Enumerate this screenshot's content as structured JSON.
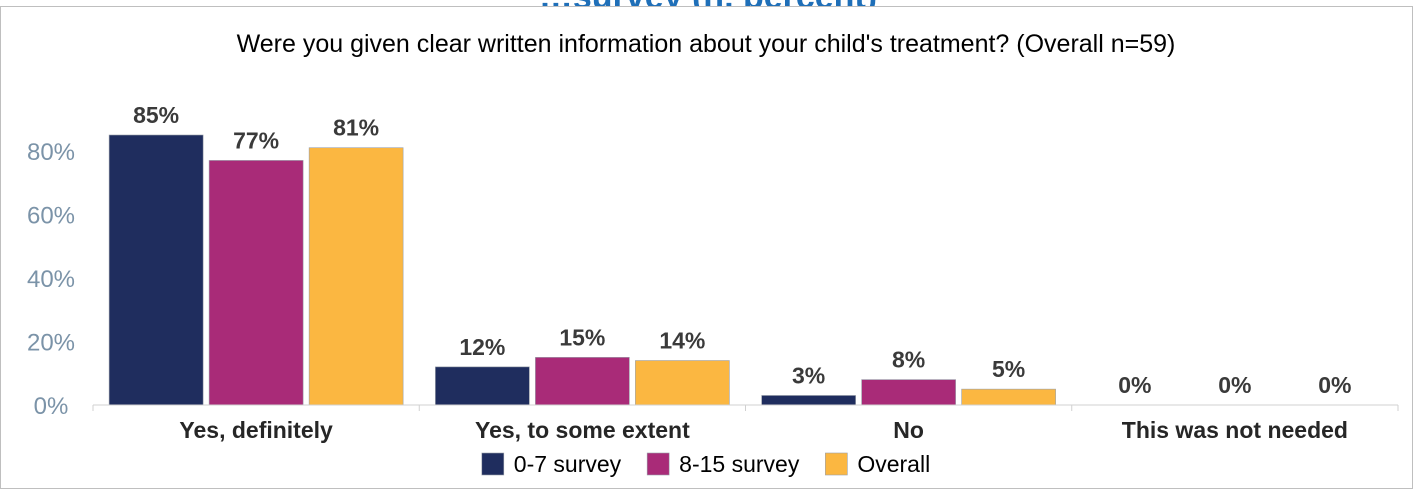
{
  "header_fragment": "…survey (n, percent)",
  "chart_data": {
    "type": "bar",
    "title": "Were you given clear written information about your child's treatment? (Overall n=59)",
    "categories": [
      "Yes, definitely",
      "Yes, to some extent",
      "No",
      "This was not needed"
    ],
    "series": [
      {
        "name": "0-7 survey",
        "values": [
          85,
          12,
          3,
          0
        ],
        "color": "#1f2d5e"
      },
      {
        "name": "8-15 survey",
        "values": [
          77,
          15,
          8,
          0
        ],
        "color": "#a92b78"
      },
      {
        "name": "Overall",
        "values": [
          81,
          14,
          5,
          0
        ],
        "color": "#fbb741"
      }
    ],
    "ylim": [
      0,
      85
    ],
    "yticks": [
      0,
      20,
      40,
      60,
      80
    ],
    "ytick_labels": [
      "0%",
      "20%",
      "40%",
      "60%",
      "80%"
    ],
    "value_suffix": "%",
    "grid": false,
    "legend_position": "bottom"
  }
}
